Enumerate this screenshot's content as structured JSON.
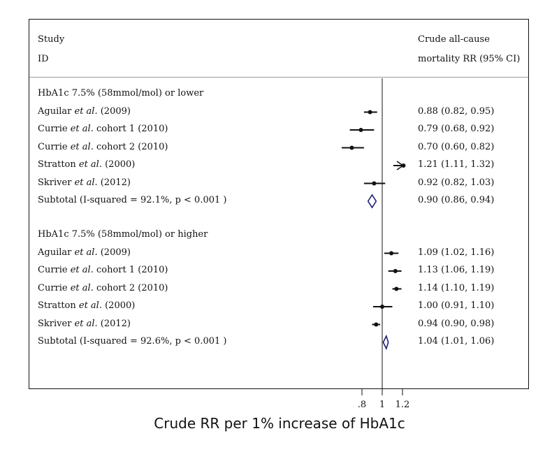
{
  "header": {
    "study_col_line1": "Study",
    "study_col_line2": "ID",
    "ci_col_line1": "Crude all-cause",
    "ci_col_line2": "mortality RR (95% CI)"
  },
  "chart_data": {
    "type": "forest",
    "xlabel": "Crude RR per 1% increase of HbA1c",
    "xlim": [
      0.6,
      1.3
    ],
    "reference_line": 1,
    "ticks": [
      {
        "value": 0.8,
        "label": ".8"
      },
      {
        "value": 1.0,
        "label": "1"
      },
      {
        "value": 1.2,
        "label": "1.2"
      }
    ],
    "groups": [
      {
        "title": "HbA1c 7.5% (58mmol/mol) or lower",
        "studies": [
          {
            "pre": "Aguilar ",
            "etal": "et al.",
            "post": " (2009)",
            "rr": 0.88,
            "lo": 0.82,
            "hi": 0.95,
            "ci_text": "0.88 (0.82, 0.95)"
          },
          {
            "pre": "Currie ",
            "etal": "et al.",
            "post": " cohort 1 (2010)",
            "rr": 0.79,
            "lo": 0.68,
            "hi": 0.92,
            "ci_text": "0.79 (0.68, 0.92)"
          },
          {
            "pre": "Currie ",
            "etal": "et al.",
            "post": " cohort 2 (2010)",
            "rr": 0.7,
            "lo": 0.6,
            "hi": 0.82,
            "ci_text": "0.70 (0.60, 0.82)"
          },
          {
            "pre": "Stratton ",
            "etal": "et al.",
            "post": " (2000)",
            "rr": 1.21,
            "lo": 1.11,
            "hi": 1.32,
            "ci_text": "1.21 (1.11, 1.32)",
            "arrow": true
          },
          {
            "pre": "Skriver ",
            "etal": "et al.",
            "post": " (2012)",
            "rr": 0.92,
            "lo": 0.82,
            "hi": 1.03,
            "ci_text": "0.92 (0.82, 1.03)"
          }
        ],
        "subtotal": {
          "label": "Subtotal  (I-squared = 92.1%, p < 0.001 )",
          "rr": 0.9,
          "lo": 0.86,
          "hi": 0.94,
          "ci_text": "0.90 (0.86, 0.94)"
        }
      },
      {
        "title": "HbA1c 7.5% (58mmol/mol) or higher",
        "studies": [
          {
            "pre": "Aguilar ",
            "etal": "et al.",
            "post": " (2009)",
            "rr": 1.09,
            "lo": 1.02,
            "hi": 1.16,
            "ci_text": "1.09 (1.02, 1.16)"
          },
          {
            "pre": "Currie ",
            "etal": "et al.",
            "post": " cohort 1 (2010)",
            "rr": 1.13,
            "lo": 1.06,
            "hi": 1.19,
            "ci_text": "1.13 (1.06, 1.19)"
          },
          {
            "pre": "Currie ",
            "etal": "et al.",
            "post": " cohort 2 (2010)",
            "rr": 1.14,
            "lo": 1.1,
            "hi": 1.19,
            "ci_text": "1.14 (1.10, 1.19)"
          },
          {
            "pre": "Stratton ",
            "etal": "et al.",
            "post": " (2000)",
            "rr": 1.0,
            "lo": 0.91,
            "hi": 1.1,
            "ci_text": "1.00 (0.91, 1.10)"
          },
          {
            "pre": "Skriver ",
            "etal": "et al.",
            "post": " (2012)",
            "rr": 0.94,
            "lo": 0.9,
            "hi": 0.98,
            "ci_text": "0.94 (0.90, 0.98)"
          }
        ],
        "subtotal": {
          "label": "Subtotal  (I-squared = 92.6%, p < 0.001 )",
          "rr": 1.04,
          "lo": 1.01,
          "hi": 1.06,
          "ci_text": "1.04 (1.01, 1.06)"
        }
      }
    ]
  },
  "colors": {
    "diamond": "#1b1f7a",
    "marks": "#111111"
  }
}
